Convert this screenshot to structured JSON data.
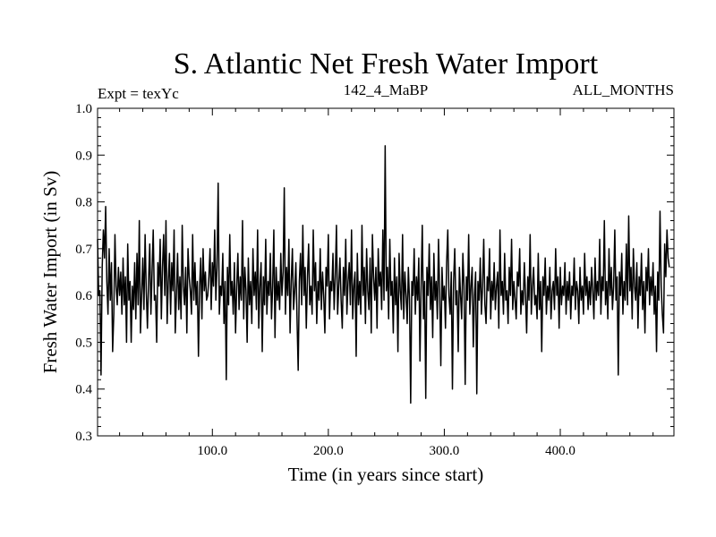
{
  "chart_data": {
    "type": "line",
    "title": "S. Atlantic Net Fresh Water Import",
    "annotations": {
      "left": "Expt = texYc",
      "center": "142_4_MaBP",
      "right": "ALL_MONTHS"
    },
    "xlabel": "Time (in years since start)",
    "ylabel": "Fresh Water Import (in Sv)",
    "xlim": [
      1,
      498
    ],
    "ylim": [
      0.3,
      1.0
    ],
    "x_ticks": [
      100,
      200,
      300,
      400
    ],
    "x_tick_labels": [
      "100.0",
      "200.0",
      "300.0",
      "400.0"
    ],
    "y_ticks": [
      0.3,
      0.4,
      0.5,
      0.6,
      0.7,
      0.8,
      0.9,
      1.0
    ],
    "y_tick_labels": [
      "0.3",
      "0.4",
      "0.5",
      "0.6",
      "0.7",
      "0.8",
      "0.9",
      "1.0"
    ],
    "grid": false,
    "line_color": "#000000",
    "series": [
      {
        "x_start": 1,
        "x_step": 1,
        "values": [
          0.72,
          0.6,
          0.61,
          0.43,
          0.66,
          0.74,
          0.68,
          0.79,
          0.63,
          0.56,
          0.7,
          0.59,
          0.67,
          0.48,
          0.56,
          0.73,
          0.62,
          0.58,
          0.66,
          0.6,
          0.65,
          0.56,
          0.68,
          0.58,
          0.64,
          0.5,
          0.71,
          0.59,
          0.63,
          0.5,
          0.62,
          0.57,
          0.67,
          0.55,
          0.69,
          0.58,
          0.76,
          0.52,
          0.6,
          0.68,
          0.57,
          0.73,
          0.61,
          0.53,
          0.63,
          0.71,
          0.56,
          0.65,
          0.74,
          0.59,
          0.6,
          0.5,
          0.67,
          0.62,
          0.72,
          0.55,
          0.66,
          0.73,
          0.6,
          0.76,
          0.54,
          0.63,
          0.69,
          0.56,
          0.67,
          0.61,
          0.74,
          0.52,
          0.6,
          0.69,
          0.57,
          0.64,
          0.55,
          0.75,
          0.62,
          0.58,
          0.66,
          0.52,
          0.7,
          0.64,
          0.61,
          0.56,
          0.73,
          0.59,
          0.67,
          0.58,
          0.63,
          0.47,
          0.62,
          0.68,
          0.55,
          0.7,
          0.61,
          0.65,
          0.59,
          0.6,
          0.64,
          0.7,
          0.57,
          0.67,
          0.62,
          0.74,
          0.59,
          0.66,
          0.84,
          0.56,
          0.62,
          0.6,
          0.69,
          0.54,
          0.63,
          0.42,
          0.66,
          0.58,
          0.73,
          0.6,
          0.63,
          0.56,
          0.67,
          0.52,
          0.62,
          0.69,
          0.57,
          0.64,
          0.59,
          0.76,
          0.55,
          0.66,
          0.61,
          0.5,
          0.68,
          0.58,
          0.63,
          0.54,
          0.7,
          0.6,
          0.65,
          0.57,
          0.74,
          0.53,
          0.62,
          0.67,
          0.48,
          0.64,
          0.58,
          0.72,
          0.56,
          0.63,
          0.6,
          0.69,
          0.55,
          0.62,
          0.74,
          0.51,
          0.66,
          0.59,
          0.63,
          0.57,
          0.69,
          0.6,
          0.65,
          0.83,
          0.56,
          0.66,
          0.6,
          0.72,
          0.52,
          0.63,
          0.7,
          0.57,
          0.61,
          0.67,
          0.55,
          0.44,
          0.63,
          0.69,
          0.58,
          0.75,
          0.6,
          0.66,
          0.53,
          0.64,
          0.71,
          0.58,
          0.62,
          0.56,
          0.74,
          0.61,
          0.67,
          0.54,
          0.63,
          0.59,
          0.7,
          0.57,
          0.65,
          0.6,
          0.52,
          0.66,
          0.62,
          0.73,
          0.55,
          0.63,
          0.61,
          0.69,
          0.57,
          0.64,
          0.75,
          0.56,
          0.62,
          0.68,
          0.59,
          0.53,
          0.66,
          0.6,
          0.72,
          0.56,
          0.63,
          0.67,
          0.58,
          0.74,
          0.55,
          0.62,
          0.65,
          0.47,
          0.69,
          0.58,
          0.63,
          0.56,
          0.75,
          0.6,
          0.66,
          0.54,
          0.7,
          0.61,
          0.57,
          0.68,
          0.52,
          0.73,
          0.64,
          0.59,
          0.66,
          0.53,
          0.7,
          0.62,
          0.65,
          0.57,
          0.74,
          0.59,
          0.92,
          0.61,
          0.66,
          0.55,
          0.72,
          0.6,
          0.63,
          0.52,
          0.68,
          0.58,
          0.64,
          0.48,
          0.69,
          0.61,
          0.57,
          0.73,
          0.55,
          0.65,
          0.6,
          0.54,
          0.66,
          0.59,
          0.37,
          0.63,
          0.6,
          0.7,
          0.56,
          0.64,
          0.59,
          0.68,
          0.46,
          0.62,
          0.75,
          0.55,
          0.63,
          0.38,
          0.66,
          0.6,
          0.71,
          0.57,
          0.64,
          0.51,
          0.69,
          0.59,
          0.63,
          0.55,
          0.72,
          0.61,
          0.45,
          0.66,
          0.59,
          0.62,
          0.53,
          0.67,
          0.74,
          0.6,
          0.56,
          0.65,
          0.4,
          0.63,
          0.7,
          0.58,
          0.61,
          0.48,
          0.66,
          0.6,
          0.55,
          0.69,
          0.62,
          0.41,
          0.64,
          0.59,
          0.73,
          0.56,
          0.62,
          0.66,
          0.49,
          0.6,
          0.65,
          0.39,
          0.63,
          0.59,
          0.68,
          0.56,
          0.62,
          0.72,
          0.58,
          0.54,
          0.64,
          0.61,
          0.7,
          0.55,
          0.63,
          0.59,
          0.67,
          0.57,
          0.62,
          0.65,
          0.53,
          0.74,
          0.6,
          0.63,
          0.56,
          0.69,
          0.59,
          0.61,
          0.54,
          0.66,
          0.6,
          0.72,
          0.57,
          0.63,
          0.59,
          0.55,
          0.65,
          0.62,
          0.7,
          0.56,
          0.61,
          0.58,
          0.67,
          0.6,
          0.52,
          0.64,
          0.59,
          0.73,
          0.56,
          0.62,
          0.66,
          0.58,
          0.6,
          0.55,
          0.69,
          0.57,
          0.63,
          0.48,
          0.64,
          0.6,
          0.68,
          0.56,
          0.62,
          0.59,
          0.66,
          0.55,
          0.61,
          0.63,
          0.57,
          0.7,
          0.6,
          0.64,
          0.53,
          0.66,
          0.58,
          0.62,
          0.6,
          0.67,
          0.56,
          0.63,
          0.59,
          0.65,
          0.55,
          0.62,
          0.6,
          0.68,
          0.57,
          0.63,
          0.61,
          0.54,
          0.66,
          0.59,
          0.62,
          0.56,
          0.69,
          0.6,
          0.64,
          0.57,
          0.63,
          0.58,
          0.66,
          0.61,
          0.55,
          0.68,
          0.59,
          0.63,
          0.6,
          0.72,
          0.56,
          0.64,
          0.61,
          0.76,
          0.58,
          0.63,
          0.55,
          0.7,
          0.6,
          0.66,
          0.57,
          0.62,
          0.74,
          0.59,
          0.64,
          0.43,
          0.65,
          0.6,
          0.69,
          0.56,
          0.63,
          0.59,
          0.71,
          0.58,
          0.77,
          0.61,
          0.66,
          0.55,
          0.7,
          0.62,
          0.59,
          0.67,
          0.53,
          0.64,
          0.6,
          0.69,
          0.57,
          0.63,
          0.52,
          0.66,
          0.61,
          0.7,
          0.58,
          0.64,
          0.6,
          0.67,
          0.56,
          0.62,
          0.48,
          0.65,
          0.59,
          0.78,
          0.62,
          0.56,
          0.52,
          0.71,
          0.64,
          0.74,
          0.68,
          0.66
        ]
      }
    ]
  }
}
